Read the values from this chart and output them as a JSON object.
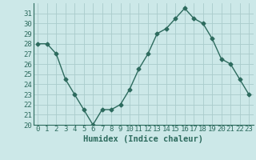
{
  "x": [
    0,
    1,
    2,
    3,
    4,
    5,
    6,
    7,
    8,
    9,
    10,
    11,
    12,
    13,
    14,
    15,
    16,
    17,
    18,
    19,
    20,
    21,
    22,
    23
  ],
  "y": [
    28,
    28,
    27,
    24.5,
    23,
    21.5,
    20,
    21.5,
    21.5,
    22,
    23.5,
    25.5,
    27,
    29,
    29.5,
    30.5,
    31.5,
    30.5,
    30,
    28.5,
    26.5,
    26,
    24.5,
    23
  ],
  "line_color": "#2d6b5e",
  "marker": "D",
  "marker_size": 2.5,
  "bg_color": "#cce8e8",
  "grid_color": "#aacccc",
  "xlabel": "Humidex (Indice chaleur)",
  "ylim": [
    20,
    32
  ],
  "xlim": [
    -0.5,
    23.5
  ],
  "yticks": [
    20,
    21,
    22,
    23,
    24,
    25,
    26,
    27,
    28,
    29,
    30,
    31
  ],
  "xtick_labels": [
    "0",
    "1",
    "2",
    "3",
    "4",
    "5",
    "6",
    "7",
    "8",
    "9",
    "10",
    "11",
    "12",
    "13",
    "14",
    "15",
    "16",
    "17",
    "18",
    "19",
    "20",
    "21",
    "22",
    "23"
  ],
  "xlabel_fontsize": 7.5,
  "tick_fontsize": 6.5,
  "line_width": 1.0
}
